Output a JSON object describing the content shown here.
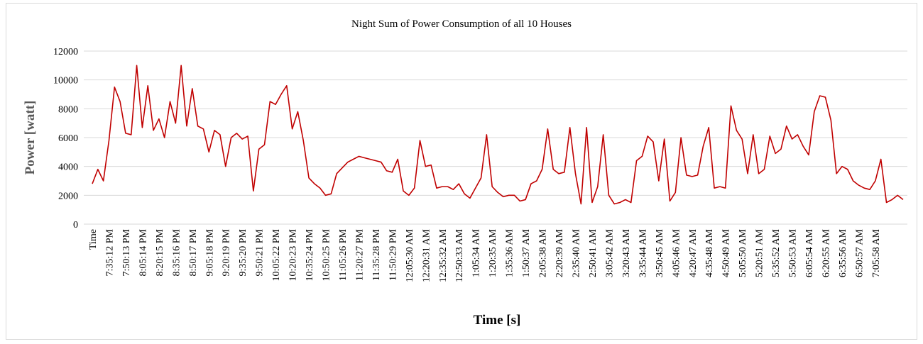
{
  "chart_data": {
    "type": "line",
    "title": "Night Sum of Power Consumption of all 10 Houses",
    "x_label": "Time [s]",
    "y_label": "Power [watt]",
    "color": "#c00000",
    "grid": true,
    "ylim": [
      0,
      12000
    ],
    "yticks": [
      0,
      2000,
      4000,
      6000,
      8000,
      10000,
      12000
    ],
    "categories": [
      "Time",
      null,
      null,
      "7:35:12 PM",
      null,
      null,
      "7:50:13 PM",
      null,
      null,
      "8:05:14 PM",
      null,
      null,
      "8:20:15 PM",
      null,
      null,
      "8:35:16 PM",
      null,
      null,
      "8:50:17 PM",
      null,
      null,
      "9:05:18 PM",
      null,
      null,
      "9:20:19 PM",
      null,
      null,
      "9:35:20 PM",
      null,
      null,
      "9:50:21 PM",
      null,
      null,
      "10:05:22 PM",
      null,
      null,
      "10:20:23 PM",
      null,
      null,
      "10:35:24 PM",
      null,
      null,
      "10:50:25 PM",
      null,
      null,
      "11:05:26 PM",
      null,
      null,
      "11:20:27 PM",
      null,
      null,
      "11:35:28 PM",
      null,
      null,
      "11:50:29 PM",
      null,
      null,
      "12:05:30 AM",
      null,
      null,
      "12:20:31 AM",
      null,
      null,
      "12:35:32 AM",
      null,
      null,
      "12:50:33 AM",
      null,
      null,
      "1:05:34 AM",
      null,
      null,
      "1:20:35 AM",
      null,
      null,
      "1:35:36 AM",
      null,
      null,
      "1:50:37 AM",
      null,
      null,
      "2:05:38 AM",
      null,
      null,
      "2:20:39 AM",
      null,
      null,
      "2:35:40 AM",
      null,
      null,
      "2:50:41 AM",
      null,
      null,
      "3:05:42 AM",
      null,
      null,
      "3:20:43 AM",
      null,
      null,
      "3:35:44 AM",
      null,
      null,
      "3:50:45 AM",
      null,
      null,
      "4:05:46 AM",
      null,
      null,
      "4:20:47 AM",
      null,
      null,
      "4:35:48 AM",
      null,
      null,
      "4:50:49 AM",
      null,
      null,
      "5:05:50 AM",
      null,
      null,
      "5:20:51 AM",
      null,
      null,
      "5:35:52 AM",
      null,
      null,
      "5:50:53 AM",
      null,
      null,
      "6:05:54 AM",
      null,
      null,
      "6:20:55 AM",
      null,
      null,
      "6:35:56 AM",
      null,
      null,
      "6:50:57 AM",
      null,
      null,
      "7:05:58 AM",
      null,
      null,
      null,
      null,
      null
    ],
    "values": [
      2800,
      3800,
      3000,
      5800,
      9500,
      8500,
      6300,
      6200,
      11000,
      6700,
      9600,
      6500,
      7300,
      6000,
      8500,
      7000,
      11000,
      6800,
      9400,
      6800,
      6600,
      5000,
      6500,
      6200,
      4000,
      6000,
      6300,
      5900,
      6100,
      2300,
      5200,
      5500,
      8500,
      8300,
      9000,
      9600,
      6600,
      7800,
      5800,
      3200,
      2800,
      2500,
      2000,
      2100,
      3500,
      3900,
      4300,
      4500,
      4700,
      4600,
      4500,
      4400,
      4300,
      3700,
      3600,
      4500,
      2300,
      2000,
      2500,
      5800,
      4000,
      4100,
      2500,
      2600,
      2600,
      2400,
      2800,
      2100,
      1800,
      2500,
      3200,
      6200,
      2600,
      2200,
      1900,
      2000,
      2000,
      1600,
      1700,
      2800,
      3000,
      3800,
      6600,
      3800,
      3500,
      3600,
      6700,
      3500,
      1400,
      6700,
      1500,
      2600,
      6200,
      2000,
      1400,
      1500,
      1700,
      1500,
      4400,
      4700,
      6100,
      5700,
      3000,
      5900,
      1600,
      2200,
      6000,
      3400,
      3300,
      3400,
      5400,
      6700,
      2500,
      2600,
      2500,
      8200,
      6500,
      5900,
      3500,
      6200,
      3500,
      3800,
      6100,
      4900,
      5200,
      6800,
      5900,
      6200,
      5400,
      4800,
      7800,
      8900,
      8800,
      7200,
      3500,
      4000,
      3800,
      3000,
      2700,
      2500,
      2400,
      3000,
      4500,
      1500,
      1700,
      2000,
      1700
    ]
  }
}
